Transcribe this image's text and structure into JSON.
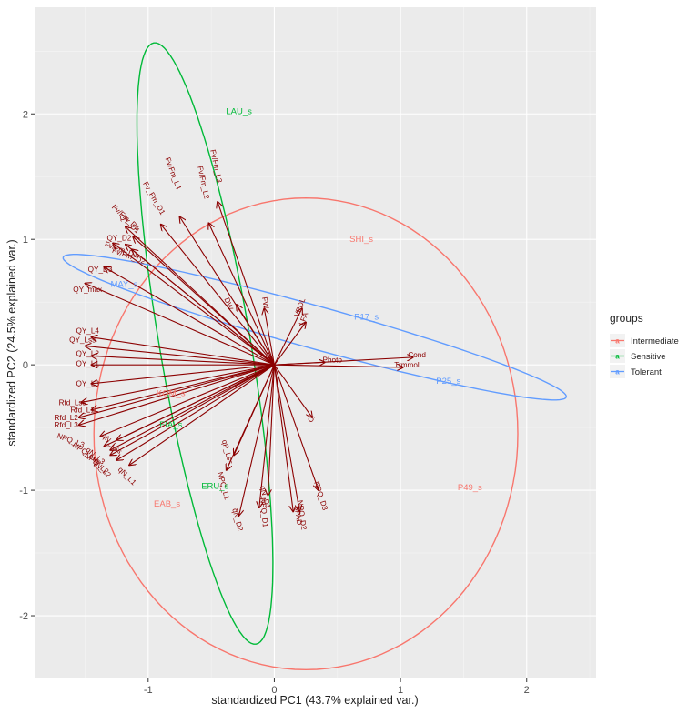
{
  "chart_data": {
    "type": "scatter",
    "title": "",
    "xlabel": "standardized PC1 (43.7% explained var.)",
    "ylabel": "standardized PC2 (24.5% explained var.)",
    "xlim": [
      -1.9,
      2.55
    ],
    "ylim": [
      -2.5,
      2.85
    ],
    "xticks": [
      -1,
      0,
      1,
      2
    ],
    "yticks": [
      -2,
      -1,
      0,
      1,
      2
    ],
    "xtick_labels": [
      "-1",
      "0",
      "1",
      "2"
    ],
    "ytick_labels": [
      "-2",
      "-1",
      "0",
      "1",
      "2"
    ],
    "grid": true,
    "legend": {
      "title": "groups",
      "position": "right",
      "entries": [
        {
          "name": "Intermediate",
          "color": "#F8766D"
        },
        {
          "name": "Sensitive",
          "color": "#00BA38"
        },
        {
          "name": "Tolerant",
          "color": "#619CFF"
        }
      ]
    },
    "arrow_color": "#8B0000",
    "ellipses": [
      {
        "group": "Intermediate",
        "color": "#F8766D",
        "cx": 0.25,
        "cy": -0.55,
        "rx": 1.68,
        "ry": 1.88,
        "angle": 0
      },
      {
        "group": "Sensitive",
        "color": "#00BA38",
        "cx": -0.55,
        "cy": 0.17,
        "rx": 0.36,
        "ry": 2.43,
        "angle": 9.6
      },
      {
        "group": "Tolerant",
        "color": "#619CFF",
        "cx": 0.32,
        "cy": 0.3,
        "rx": 2.07,
        "ry": 0.17,
        "angle": -15.6
      }
    ],
    "samples": [
      {
        "label": "LAU_s",
        "group": "Sensitive",
        "x": -0.28,
        "y": 2.0
      },
      {
        "label": "SHI_s",
        "group": "Intermediate",
        "x": 0.69,
        "y": 0.98
      },
      {
        "label": "MAY_s",
        "group": "Tolerant",
        "x": -1.19,
        "y": 0.62
      },
      {
        "label": "P17_s",
        "group": "Tolerant",
        "x": 0.73,
        "y": 0.36
      },
      {
        "label": "P25_s",
        "group": "Tolerant",
        "x": 1.38,
        "y": -0.15
      },
      {
        "label": "P49_s",
        "group": "Intermediate",
        "x": 1.55,
        "y": -1.0
      },
      {
        "label": "ERU_s",
        "group": "Sensitive",
        "x": -0.47,
        "y": -0.99
      },
      {
        "label": "EAB_s",
        "group": "Intermediate",
        "x": -0.85,
        "y": -1.13
      },
      {
        "label": "KOM_s",
        "group": "Intermediate",
        "x": -0.82,
        "y": -0.25
      },
      {
        "label": "EIA_s",
        "group": "Sensitive",
        "x": -0.82,
        "y": -0.5
      }
    ],
    "loadings": [
      {
        "label": "Fv/Fm_L3",
        "x": -0.45,
        "y": 1.3,
        "lx": -0.48,
        "ly": 1.58,
        "rot": 78
      },
      {
        "label": "Fv/Fm_L2",
        "x": -0.52,
        "y": 1.13,
        "lx": -0.58,
        "ly": 1.45,
        "rot": 78
      },
      {
        "label": "Fv/Fm_L4",
        "x": -0.75,
        "y": 1.18,
        "lx": -0.82,
        "ly": 1.52,
        "rot": 70
      },
      {
        "label": "Fv_Fm_D1",
        "x": -0.9,
        "y": 1.12,
        "lx": -0.97,
        "ly": 1.32,
        "rot": 60
      },
      {
        "label": "Fv/Fm_D1",
        "x": -1.18,
        "y": 1.1,
        "lx": -1.19,
        "ly": 1.16,
        "rot": 42
      },
      {
        "label": "QY_D1",
        "x": -1.12,
        "y": 1.02,
        "lx": -1.16,
        "ly": 1.11,
        "rot": 42
      },
      {
        "label": "QY_D2",
        "x": -1.28,
        "y": 0.97,
        "lx": -1.23,
        "ly": 0.99,
        "rot": 0
      },
      {
        "label": "Fv/Fm_D1",
        "x": -1.18,
        "y": 0.96,
        "lx": -1.22,
        "ly": 0.9,
        "rot": 20
      },
      {
        "label": "Fv/Fm_D2",
        "x": -1.13,
        "y": 0.92,
        "lx": -1.16,
        "ly": 0.85,
        "rot": 20
      },
      {
        "label": "QY_D3",
        "x": -1.35,
        "y": 0.78,
        "lx": -1.38,
        "ly": 0.74,
        "rot": 0
      },
      {
        "label": "QY_max",
        "x": -1.5,
        "y": 0.65,
        "lx": -1.48,
        "ly": 0.58,
        "rot": 0
      },
      {
        "label": "DW",
        "x": -0.3,
        "y": 0.48,
        "lx": -0.38,
        "ly": 0.48,
        "rot": 70
      },
      {
        "label": "FW",
        "x": -0.08,
        "y": 0.45,
        "lx": -0.09,
        "ly": 0.49,
        "rot": 80
      },
      {
        "label": "VPDL",
        "x": 0.22,
        "y": 0.45,
        "lx": 0.22,
        "ly": 0.45,
        "rot": -70
      },
      {
        "label": "LFA",
        "x": 0.25,
        "y": 0.34,
        "lx": 0.25,
        "ly": 0.36,
        "rot": -70
      },
      {
        "label": "Cond",
        "x": 1.1,
        "y": 0.06,
        "lx": 1.13,
        "ly": 0.06,
        "rot": 0
      },
      {
        "label": "Trmmol",
        "x": 1.02,
        "y": -0.02,
        "lx": 1.05,
        "ly": -0.02,
        "rot": 0
      },
      {
        "label": "Photo",
        "x": 0.4,
        "y": 0.02,
        "lx": 0.46,
        "ly": 0.02,
        "rot": 0
      },
      {
        "label": "Ci",
        "x": 0.3,
        "y": -0.42,
        "lx": 0.31,
        "ly": -0.44,
        "rot": -60
      },
      {
        "label": "NPQ_D3",
        "x": 0.35,
        "y": -1.0,
        "lx": 0.35,
        "ly": -1.05,
        "rot": 72
      },
      {
        "label": "SPAD",
        "x": 0.15,
        "y": -1.17,
        "lx": 0.17,
        "ly": -1.2,
        "rot": 82
      },
      {
        "label": "NPQ_D2",
        "x": 0.2,
        "y": -1.17,
        "lx": 0.2,
        "ly": -1.2,
        "rot": 82
      },
      {
        "label": "qN_D1",
        "x": -0.05,
        "y": -1.04,
        "lx": -0.09,
        "ly": -1.06,
        "rot": 75
      },
      {
        "label": "NPQ_D1",
        "x": -0.12,
        "y": -1.14,
        "lx": -0.1,
        "ly": -1.18,
        "rot": 85
      },
      {
        "label": "qN_D2",
        "x": -0.28,
        "y": -1.2,
        "lx": -0.31,
        "ly": -1.24,
        "rot": 75
      },
      {
        "label": "qP_Lss",
        "x": -0.32,
        "y": -0.72,
        "lx": -0.39,
        "ly": -0.7,
        "rot": 75
      },
      {
        "label": "NPQ_L1",
        "x": -0.38,
        "y": -0.84,
        "lx": -0.42,
        "ly": -0.97,
        "rot": 75
      },
      {
        "label": "QY_L4",
        "x": -1.45,
        "y": 0.22,
        "lx": -1.48,
        "ly": 0.25,
        "rot": 0
      },
      {
        "label": "QY_Lss",
        "x": -1.5,
        "y": 0.15,
        "lx": -1.52,
        "ly": 0.18,
        "rot": 0
      },
      {
        "label": "QY_L2",
        "x": -1.45,
        "y": 0.07,
        "lx": -1.48,
        "ly": 0.07,
        "rot": 0
      },
      {
        "label": "QY_L1",
        "x": -1.45,
        "y": 0.0,
        "lx": -1.48,
        "ly": -0.01,
        "rot": 0
      },
      {
        "label": "QY_L3",
        "x": -1.45,
        "y": -0.15,
        "lx": -1.48,
        "ly": -0.17,
        "rot": 0
      },
      {
        "label": "Rfd_Lss",
        "x": -1.53,
        "y": -0.3,
        "lx": -1.6,
        "ly": -0.32,
        "rot": 0
      },
      {
        "label": "Rfd_L1",
        "x": -1.45,
        "y": -0.36,
        "lx": -1.52,
        "ly": -0.38,
        "rot": 0
      },
      {
        "label": "Rfd_L2",
        "x": -1.55,
        "y": -0.42,
        "lx": -1.65,
        "ly": -0.44,
        "rot": 0
      },
      {
        "label": "Rfd_L3",
        "x": -1.55,
        "y": -0.48,
        "lx": -1.65,
        "ly": -0.5,
        "rot": 0
      },
      {
        "label": "NPQ_L3",
        "x": -1.38,
        "y": -0.57,
        "lx": -1.62,
        "ly": -0.62,
        "rot": 20
      },
      {
        "label": "qN_Lss",
        "x": -1.25,
        "y": -0.6,
        "lx": -1.3,
        "ly": -0.64,
        "rot": 45
      },
      {
        "label": "NPQ_Lss",
        "x": -1.35,
        "y": -0.65,
        "lx": -1.5,
        "ly": -0.72,
        "rot": 35
      },
      {
        "label": "qN_L3",
        "x": -1.3,
        "y": -0.68,
        "lx": -1.43,
        "ly": -0.74,
        "rot": 40
      },
      {
        "label": "NPQ_L2",
        "x": -1.3,
        "y": -0.72,
        "lx": -1.42,
        "ly": -0.8,
        "rot": 40
      },
      {
        "label": "qN_L2",
        "x": -1.25,
        "y": -0.76,
        "lx": -1.38,
        "ly": -0.84,
        "rot": 45
      },
      {
        "label": "qN_L1",
        "x": -1.15,
        "y": -0.8,
        "lx": -1.18,
        "ly": -0.9,
        "rot": 45
      }
    ]
  }
}
